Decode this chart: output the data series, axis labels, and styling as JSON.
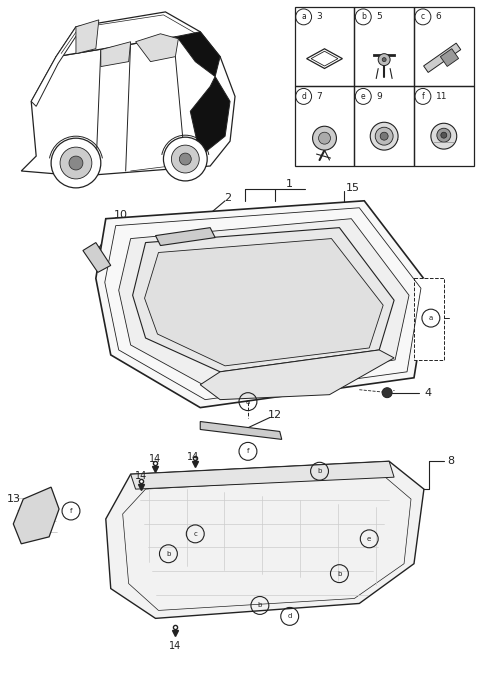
{
  "bg_color": "#ffffff",
  "fig_width": 4.8,
  "fig_height": 6.78,
  "dpi": 100,
  "legend_data": [
    {
      "label": "a",
      "num": "3",
      "col": 0,
      "row": 0
    },
    {
      "label": "b",
      "num": "5",
      "col": 1,
      "row": 0
    },
    {
      "label": "c",
      "num": "6",
      "col": 2,
      "row": 0
    },
    {
      "label": "d",
      "num": "7",
      "col": 0,
      "row": 1
    },
    {
      "label": "e",
      "num": "9",
      "col": 1,
      "row": 1
    },
    {
      "label": "f",
      "num": "11",
      "col": 2,
      "row": 1
    }
  ],
  "car_highlight_color": "#000000",
  "panel_face": "#f8f8f8",
  "panel_edge": "#333333",
  "bumper_face": "#f2f2f2",
  "strip_face": "#e0e0e0",
  "line_color": "#222222",
  "light_gray": "#aaaaaa"
}
